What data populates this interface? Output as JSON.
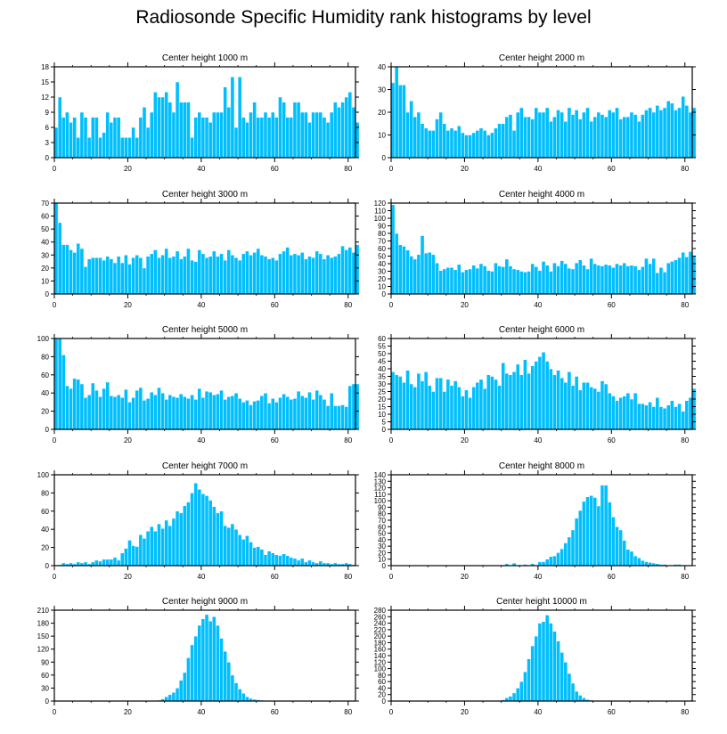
{
  "page_title": "Radiosonde Specific Humidity rank histograms by level",
  "colors": {
    "bar": "#00BFFF",
    "bar_edge": "#ffffff",
    "axis": "#000000"
  },
  "chart_data": [
    {
      "type": "bar",
      "title": "Center height 1000 m",
      "xlim": [
        0,
        82
      ],
      "ylim": [
        0,
        18
      ],
      "yticks": [
        0,
        3,
        6,
        9,
        12,
        15,
        18
      ],
      "xticks": [
        0,
        20,
        40,
        60,
        80
      ],
      "values": [
        6,
        12,
        8,
        9,
        7,
        8,
        4,
        9,
        8,
        4,
        8,
        8,
        4,
        5,
        9,
        7,
        8,
        8,
        4,
        4,
        4,
        6,
        4,
        8,
        10,
        6,
        9,
        13,
        12,
        12,
        13,
        11,
        9,
        15,
        11,
        11,
        11,
        4,
        8,
        9,
        8,
        8,
        7,
        9,
        9,
        9,
        14,
        10,
        16,
        6,
        16,
        8,
        7,
        9,
        11,
        8,
        8,
        9,
        8,
        9,
        8,
        12,
        11,
        8,
        8,
        11,
        11,
        9,
        9,
        7,
        9,
        9,
        9,
        8,
        7,
        9,
        11,
        10,
        11,
        12,
        13,
        10,
        7
      ]
    },
    {
      "type": "bar",
      "title": "Center height 2000 m",
      "xlim": [
        0,
        82
      ],
      "ylim": [
        0,
        40
      ],
      "yticks": [
        0,
        10,
        20,
        30,
        40
      ],
      "xticks": [
        0,
        20,
        40,
        60,
        80
      ],
      "values": [
        33,
        40,
        32,
        32,
        20,
        25,
        18,
        20,
        15,
        13,
        12,
        12,
        17,
        20,
        15,
        12,
        13,
        12,
        14,
        11,
        10,
        10,
        11,
        12,
        13,
        12,
        10,
        11,
        13,
        15,
        15,
        18,
        19,
        12,
        20,
        22,
        18,
        18,
        17,
        22,
        20,
        20,
        22,
        16,
        18,
        21,
        20,
        16,
        22,
        19,
        21,
        17,
        20,
        22,
        16,
        18,
        20,
        19,
        18,
        21,
        20,
        22,
        17,
        18,
        18,
        20,
        19,
        16,
        19,
        21,
        22,
        20,
        23,
        21,
        22,
        25,
        24,
        21,
        22,
        27,
        23,
        20,
        22
      ]
    },
    {
      "type": "bar",
      "title": "Center height 3000 m",
      "xlim": [
        0,
        82
      ],
      "ylim": [
        0,
        70
      ],
      "yticks": [
        0,
        10,
        20,
        30,
        40,
        50,
        60,
        70
      ],
      "xticks": [
        0,
        20,
        40,
        60,
        80
      ],
      "values": [
        70,
        55,
        38,
        38,
        34,
        32,
        39,
        35,
        21,
        27,
        28,
        28,
        28,
        26,
        29,
        27,
        24,
        29,
        24,
        30,
        23,
        28,
        30,
        28,
        20,
        29,
        31,
        34,
        28,
        30,
        35,
        28,
        29,
        33,
        27,
        29,
        35,
        26,
        25,
        34,
        31,
        28,
        29,
        33,
        29,
        31,
        26,
        34,
        30,
        28,
        26,
        31,
        33,
        30,
        32,
        35,
        30,
        29,
        27,
        28,
        26,
        31,
        33,
        36,
        30,
        31,
        30,
        32,
        27,
        29,
        28,
        33,
        31,
        27,
        30,
        28,
        29,
        31,
        37,
        34,
        36,
        32,
        38
      ]
    },
    {
      "type": "bar",
      "title": "Center height 4000 m",
      "xlim": [
        0,
        82
      ],
      "ylim": [
        0,
        120
      ],
      "yticks": [
        0,
        10,
        20,
        30,
        40,
        50,
        60,
        70,
        80,
        90,
        100,
        110,
        120
      ],
      "xticks": [
        0,
        20,
        40,
        60,
        80
      ],
      "values": [
        118,
        80,
        65,
        63,
        58,
        50,
        46,
        52,
        77,
        54,
        55,
        52,
        41,
        31,
        33,
        35,
        35,
        32,
        39,
        29,
        32,
        33,
        38,
        34,
        40,
        37,
        31,
        30,
        41,
        37,
        36,
        46,
        37,
        33,
        32,
        30,
        29,
        30,
        40,
        36,
        31,
        43,
        38,
        30,
        41,
        37,
        44,
        40,
        34,
        33,
        41,
        45,
        38,
        33,
        47,
        40,
        38,
        37,
        39,
        38,
        35,
        40,
        38,
        41,
        37,
        38,
        37,
        32,
        36,
        47,
        40,
        47,
        28,
        35,
        29,
        41,
        43,
        45,
        48,
        55,
        49,
        56,
        50
      ]
    },
    {
      "type": "bar",
      "title": "Center height 5000 m",
      "xlim": [
        0,
        82
      ],
      "ylim": [
        0,
        100
      ],
      "yticks": [
        0,
        20,
        40,
        60,
        80,
        100
      ],
      "xticks": [
        0,
        20,
        40,
        60,
        80
      ],
      "values": [
        100,
        100,
        82,
        48,
        45,
        56,
        55,
        50,
        35,
        38,
        51,
        43,
        36,
        45,
        52,
        37,
        36,
        38,
        35,
        44,
        30,
        35,
        43,
        46,
        32,
        34,
        41,
        38,
        46,
        40,
        33,
        38,
        36,
        35,
        39,
        36,
        34,
        38,
        33,
        45,
        35,
        42,
        41,
        38,
        39,
        43,
        33,
        36,
        37,
        40,
        34,
        30,
        32,
        27,
        31,
        32,
        37,
        40,
        29,
        34,
        30,
        35,
        39,
        36,
        33,
        34,
        42,
        37,
        35,
        41,
        33,
        43,
        38,
        33,
        26,
        40,
        26,
        26,
        27,
        25,
        48,
        50,
        50
      ]
    },
    {
      "type": "bar",
      "title": "Center height 6000 m",
      "xlim": [
        0,
        82
      ],
      "ylim": [
        0,
        60
      ],
      "yticks": [
        0,
        5,
        10,
        15,
        20,
        25,
        30,
        35,
        40,
        45,
        50,
        55,
        60
      ],
      "xticks": [
        0,
        20,
        40,
        60,
        80
      ],
      "values": [
        38,
        36,
        35,
        31,
        39,
        30,
        28,
        37,
        32,
        38,
        29,
        25,
        34,
        34,
        25,
        33,
        29,
        32,
        28,
        22,
        26,
        21,
        28,
        31,
        33,
        27,
        36,
        35,
        33,
        29,
        44,
        37,
        36,
        38,
        43,
        36,
        46,
        37,
        42,
        45,
        48,
        51,
        45,
        40,
        36,
        39,
        34,
        31,
        38,
        29,
        35,
        26,
        31,
        31,
        28,
        27,
        25,
        32,
        30,
        24,
        22,
        19,
        21,
        22,
        24,
        20,
        24,
        17,
        17,
        16,
        18,
        15,
        21,
        15,
        14,
        16,
        19,
        15,
        17,
        12,
        19,
        21,
        27
      ]
    },
    {
      "type": "bar",
      "title": "Center height 7000 m",
      "xlim": [
        0,
        82
      ],
      "ylim": [
        0,
        100
      ],
      "yticks": [
        0,
        20,
        40,
        60,
        80,
        100
      ],
      "xticks": [
        0,
        20,
        40,
        60,
        80
      ],
      "values": [
        0,
        1,
        3,
        2,
        3,
        2,
        4,
        3,
        4,
        2,
        4,
        6,
        5,
        7,
        7,
        7,
        9,
        6,
        14,
        19,
        28,
        22,
        21,
        34,
        30,
        38,
        43,
        38,
        46,
        41,
        50,
        44,
        52,
        60,
        58,
        66,
        70,
        80,
        91,
        84,
        79,
        77,
        72,
        65,
        58,
        60,
        44,
        42,
        46,
        40,
        34,
        29,
        33,
        26,
        20,
        21,
        18,
        12,
        16,
        14,
        12,
        11,
        13,
        11,
        9,
        8,
        6,
        8,
        4,
        6,
        4,
        3,
        5,
        3,
        3,
        2,
        3,
        2,
        2,
        3,
        2,
        1,
        0
      ]
    },
    {
      "type": "bar",
      "title": "Center height 8000 m",
      "xlim": [
        0,
        82
      ],
      "ylim": [
        0,
        140
      ],
      "yticks": [
        0,
        10,
        20,
        30,
        40,
        50,
        60,
        70,
        80,
        90,
        100,
        110,
        120,
        130,
        140
      ],
      "xticks": [
        0,
        20,
        40,
        60,
        80
      ],
      "values": [
        0,
        0,
        0,
        0,
        0,
        0,
        0,
        0,
        0,
        0,
        0,
        0,
        0,
        0,
        0,
        0,
        0,
        0,
        0,
        0,
        0,
        1,
        1,
        1,
        1,
        1,
        0,
        0,
        1,
        1,
        0,
        3,
        1,
        4,
        0,
        1,
        2,
        0,
        3,
        0,
        6,
        6,
        10,
        14,
        15,
        20,
        26,
        35,
        44,
        55,
        73,
        85,
        99,
        106,
        108,
        105,
        92,
        124,
        124,
        98,
        75,
        60,
        55,
        39,
        25,
        22,
        15,
        12,
        8,
        6,
        5,
        4,
        3,
        2,
        2,
        1,
        1,
        2,
        2,
        1,
        1,
        0,
        0
      ]
    },
    {
      "type": "bar",
      "title": "Center height 9000 m",
      "xlim": [
        0,
        82
      ],
      "ylim": [
        0,
        210
      ],
      "yticks": [
        0,
        30,
        60,
        90,
        120,
        150,
        180,
        210
      ],
      "xticks": [
        0,
        20,
        40,
        60,
        80
      ],
      "values": [
        0,
        0,
        0,
        0,
        0,
        0,
        0,
        0,
        0,
        0,
        0,
        0,
        0,
        0,
        0,
        0,
        0,
        0,
        0,
        0,
        0,
        0,
        0,
        0,
        0,
        0,
        0,
        1,
        2,
        5,
        10,
        15,
        20,
        30,
        48,
        66,
        100,
        130,
        150,
        175,
        190,
        200,
        185,
        195,
        175,
        145,
        115,
        90,
        60,
        42,
        28,
        18,
        10,
        6,
        4,
        3,
        2,
        1,
        1,
        0,
        0,
        0,
        0,
        0,
        0,
        0,
        0,
        0,
        0,
        0,
        0,
        0,
        0,
        0,
        0,
        0,
        0,
        0,
        0,
        0,
        0,
        0,
        0
      ]
    },
    {
      "type": "bar",
      "title": "Center height 10000 m",
      "xlim": [
        0,
        82
      ],
      "ylim": [
        0,
        280
      ],
      "yticks": [
        0,
        20,
        40,
        60,
        80,
        100,
        120,
        140,
        160,
        180,
        200,
        220,
        240,
        260,
        280
      ],
      "xticks": [
        0,
        20,
        40,
        60,
        80
      ],
      "values": [
        0,
        0,
        0,
        0,
        0,
        0,
        0,
        0,
        0,
        0,
        0,
        0,
        0,
        0,
        0,
        0,
        0,
        0,
        0,
        0,
        0,
        0,
        0,
        0,
        0,
        0,
        0,
        0,
        1,
        2,
        4,
        10,
        15,
        25,
        40,
        60,
        90,
        130,
        170,
        200,
        240,
        245,
        265,
        240,
        215,
        185,
        150,
        120,
        85,
        55,
        30,
        18,
        10,
        5,
        3,
        2,
        1,
        1,
        0,
        0,
        0,
        0,
        0,
        0,
        0,
        0,
        0,
        0,
        0,
        0,
        0,
        0,
        0,
        0,
        0,
        0,
        0,
        0,
        0,
        0,
        0,
        0,
        0
      ]
    }
  ]
}
